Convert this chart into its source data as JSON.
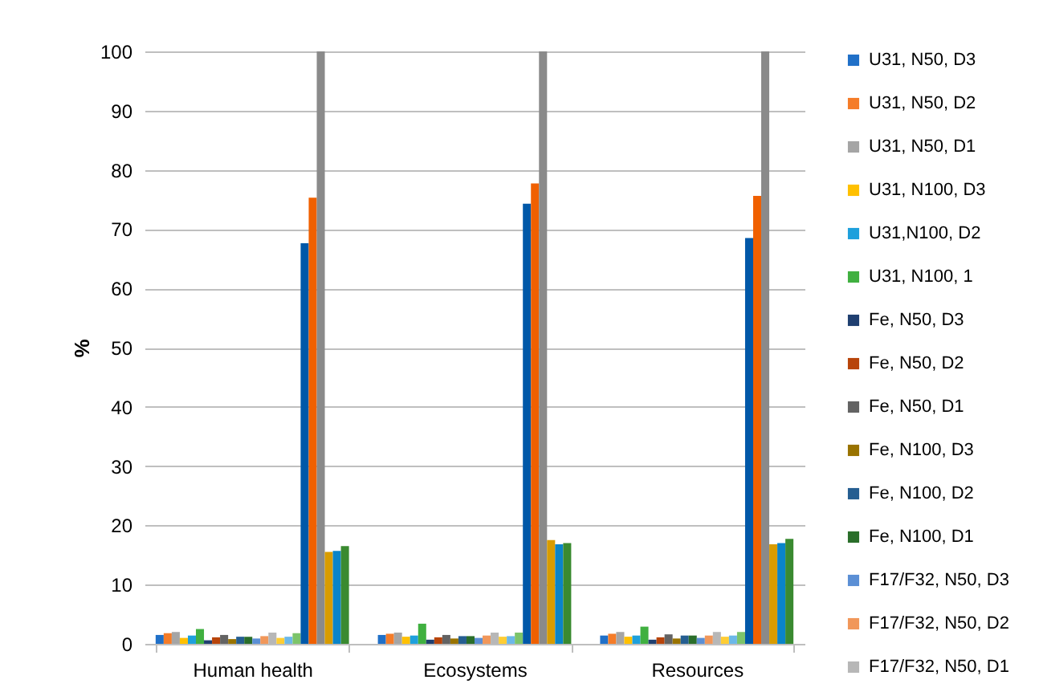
{
  "chart_data": {
    "type": "bar",
    "ylabel": "%",
    "categories": [
      "Human health",
      "Ecosystems",
      "Resources"
    ],
    "ylim": [
      0,
      100
    ],
    "yticks": [
      0,
      10,
      20,
      30,
      40,
      50,
      60,
      70,
      80,
      90,
      100
    ],
    "grid": "y",
    "legend": "right",
    "series": [
      {
        "name": "U31, N50, D3",
        "color": "#2070c8",
        "values": [
          1.5,
          1.5,
          1.4
        ]
      },
      {
        "name": "U31, N50, D2",
        "color": "#f57c28",
        "values": [
          1.8,
          1.7,
          1.7
        ]
      },
      {
        "name": "U31, N50, D1",
        "color": "#a5a5a5",
        "values": [
          2.0,
          1.9,
          2.0
        ]
      },
      {
        "name": "U31, N100, D3",
        "color": "#ffc000",
        "values": [
          1.0,
          1.2,
          1.2
        ]
      },
      {
        "name": "U31,N100, D2",
        "color": "#1ea0dc",
        "values": [
          1.4,
          1.4,
          1.4
        ]
      },
      {
        "name": "U31, N100, 1",
        "color": "#40b040",
        "values": [
          2.5,
          3.4,
          2.9
        ]
      },
      {
        "name": "Fe, N50, D3",
        "color": "#1f3f70",
        "values": [
          0.6,
          0.7,
          0.7
        ]
      },
      {
        "name": "Fe, N50, D2",
        "color": "#b8440a",
        "values": [
          1.1,
          1.1,
          1.1
        ]
      },
      {
        "name": "Fe, N50, D1",
        "color": "#636363",
        "values": [
          1.5,
          1.5,
          1.6
        ]
      },
      {
        "name": "Fe, N100, D3",
        "color": "#997300",
        "values": [
          0.8,
          0.9,
          0.9
        ]
      },
      {
        "name": "Fe, N100, D2",
        "color": "#255e91",
        "values": [
          1.2,
          1.3,
          1.4
        ]
      },
      {
        "name": "Fe, N100, D1",
        "color": "#2a6e2a",
        "values": [
          1.2,
          1.3,
          1.4
        ]
      },
      {
        "name": "F17/F32, N50, D3",
        "color": "#5b8fd5",
        "values": [
          0.9,
          1.0,
          1.0
        ]
      },
      {
        "name": "F17/F32, N50, D2",
        "color": "#f1975a",
        "values": [
          1.3,
          1.4,
          1.4
        ]
      },
      {
        "name": "F17/F32, N50, D1",
        "color": "#b7b7b7",
        "values": [
          1.9,
          1.9,
          2.0
        ]
      },
      {
        "color": "#ffcd33",
        "values": [
          1.0,
          1.2,
          1.2
        ]
      },
      {
        "color": "#6cb8e8",
        "values": [
          1.2,
          1.3,
          1.4
        ]
      },
      {
        "color": "#7cc46a",
        "values": [
          1.8,
          1.9,
          2.0
        ]
      },
      {
        "color": "#0058a8",
        "values": [
          67.6,
          74.3,
          68.5
        ]
      },
      {
        "color": "#f06000",
        "values": [
          75.3,
          77.7,
          75.6
        ]
      },
      {
        "color": "#8a8a8a",
        "values": [
          100,
          100,
          100
        ]
      },
      {
        "color": "#d89c00",
        "values": [
          15.5,
          17.5,
          16.8
        ]
      },
      {
        "color": "#0a84c8",
        "values": [
          15.7,
          16.8,
          17.0
        ]
      },
      {
        "color": "#3a8a30",
        "values": [
          16.5,
          17.0,
          17.7
        ]
      }
    ]
  }
}
